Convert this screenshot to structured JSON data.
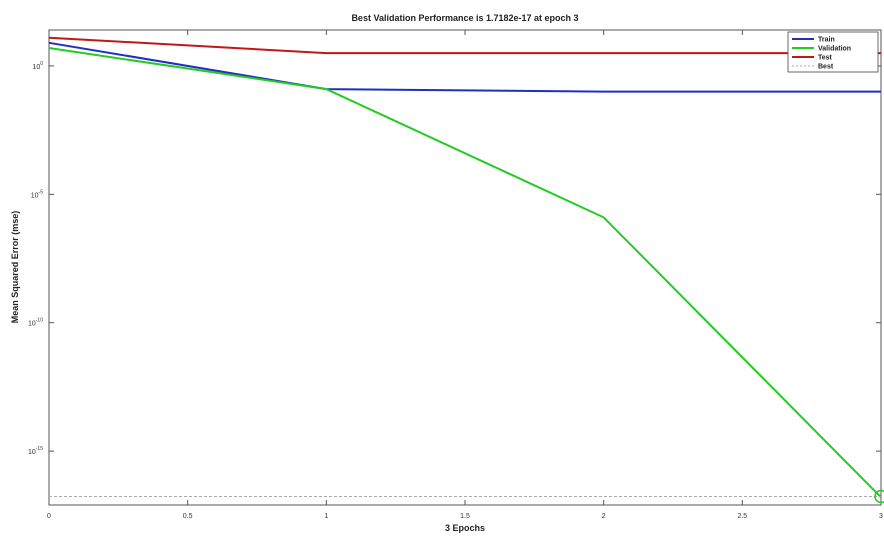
{
  "chart_data": {
    "type": "line",
    "title": "Best Validation Performance is 1.7182e-17 at epoch 3",
    "xlabel": "3 Epochs",
    "ylabel": "Mean Squared Error  (mse)",
    "xlim": [
      0,
      3
    ],
    "ylim_log10": [
      -17.1,
      1.4
    ],
    "yscale": "log",
    "x_ticks": [
      0,
      0.5,
      1,
      1.5,
      2,
      2.5,
      3
    ],
    "x_tick_labels": [
      "0",
      "0.5",
      "1",
      "1.5",
      "2",
      "2.5",
      "3"
    ],
    "y_ticks_log10": [
      0,
      -5,
      -10,
      -15
    ],
    "y_tick_labels": [
      "10^0",
      "10^-5",
      "10^-10",
      "10^-15"
    ],
    "grid": false,
    "legend_position": "top-right",
    "series": [
      {
        "name": "Train",
        "color": "#1f2fbf",
        "x": [
          0,
          1,
          2,
          3
        ],
        "y_log10": [
          0.9,
          -0.9,
          -1.0,
          -1.0
        ]
      },
      {
        "name": "Validation",
        "color": "#22cc22",
        "x": [
          0,
          1,
          2,
          3
        ],
        "y_log10": [
          0.7,
          -0.9,
          -5.9,
          -16.8
        ]
      },
      {
        "name": "Test",
        "color": "#c01818",
        "x": [
          0,
          1,
          2,
          3
        ],
        "y_log10": [
          1.1,
          0.5,
          0.5,
          0.5
        ]
      },
      {
        "name": "Best",
        "color": "#aaaaaa",
        "dashed": true,
        "x": [
          0,
          3
        ],
        "y_log10": [
          -16.77,
          -16.77
        ]
      }
    ],
    "best_marker": {
      "x": 3,
      "y_log10": -16.77,
      "color": "#22cc22"
    }
  }
}
